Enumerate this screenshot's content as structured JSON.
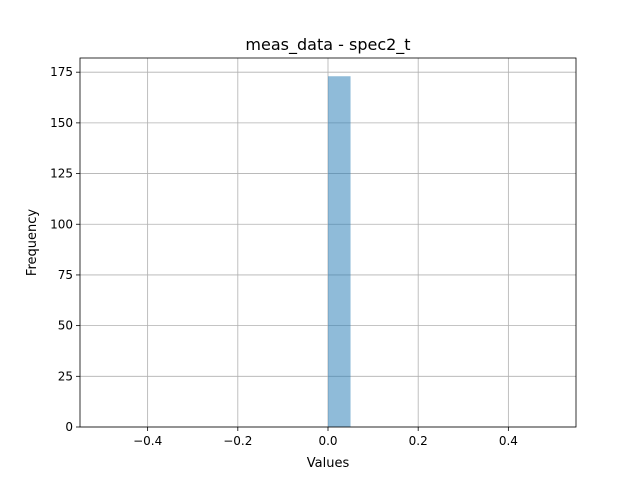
{
  "chart_data": {
    "type": "bar",
    "title": "meas_data - spec2_t",
    "xlabel": "Values",
    "ylabel": "Frequency",
    "xlim": [
      -0.55,
      0.55
    ],
    "ylim": [
      0,
      182
    ],
    "xticks": [
      -0.4,
      -0.2,
      0.0,
      0.2,
      0.4
    ],
    "xtick_labels": [
      "−0.4",
      "−0.2",
      "0.0",
      "0.2",
      "0.4"
    ],
    "yticks": [
      0,
      25,
      50,
      75,
      100,
      125,
      150,
      175
    ],
    "ytick_labels": [
      "0",
      "25",
      "50",
      "75",
      "100",
      "125",
      "150",
      "175"
    ],
    "grid": true,
    "bars": [
      {
        "x0": 0.0,
        "x1": 0.05,
        "value": 173
      }
    ],
    "bar_color": "#1f77b4",
    "bar_opacity": 0.5
  }
}
